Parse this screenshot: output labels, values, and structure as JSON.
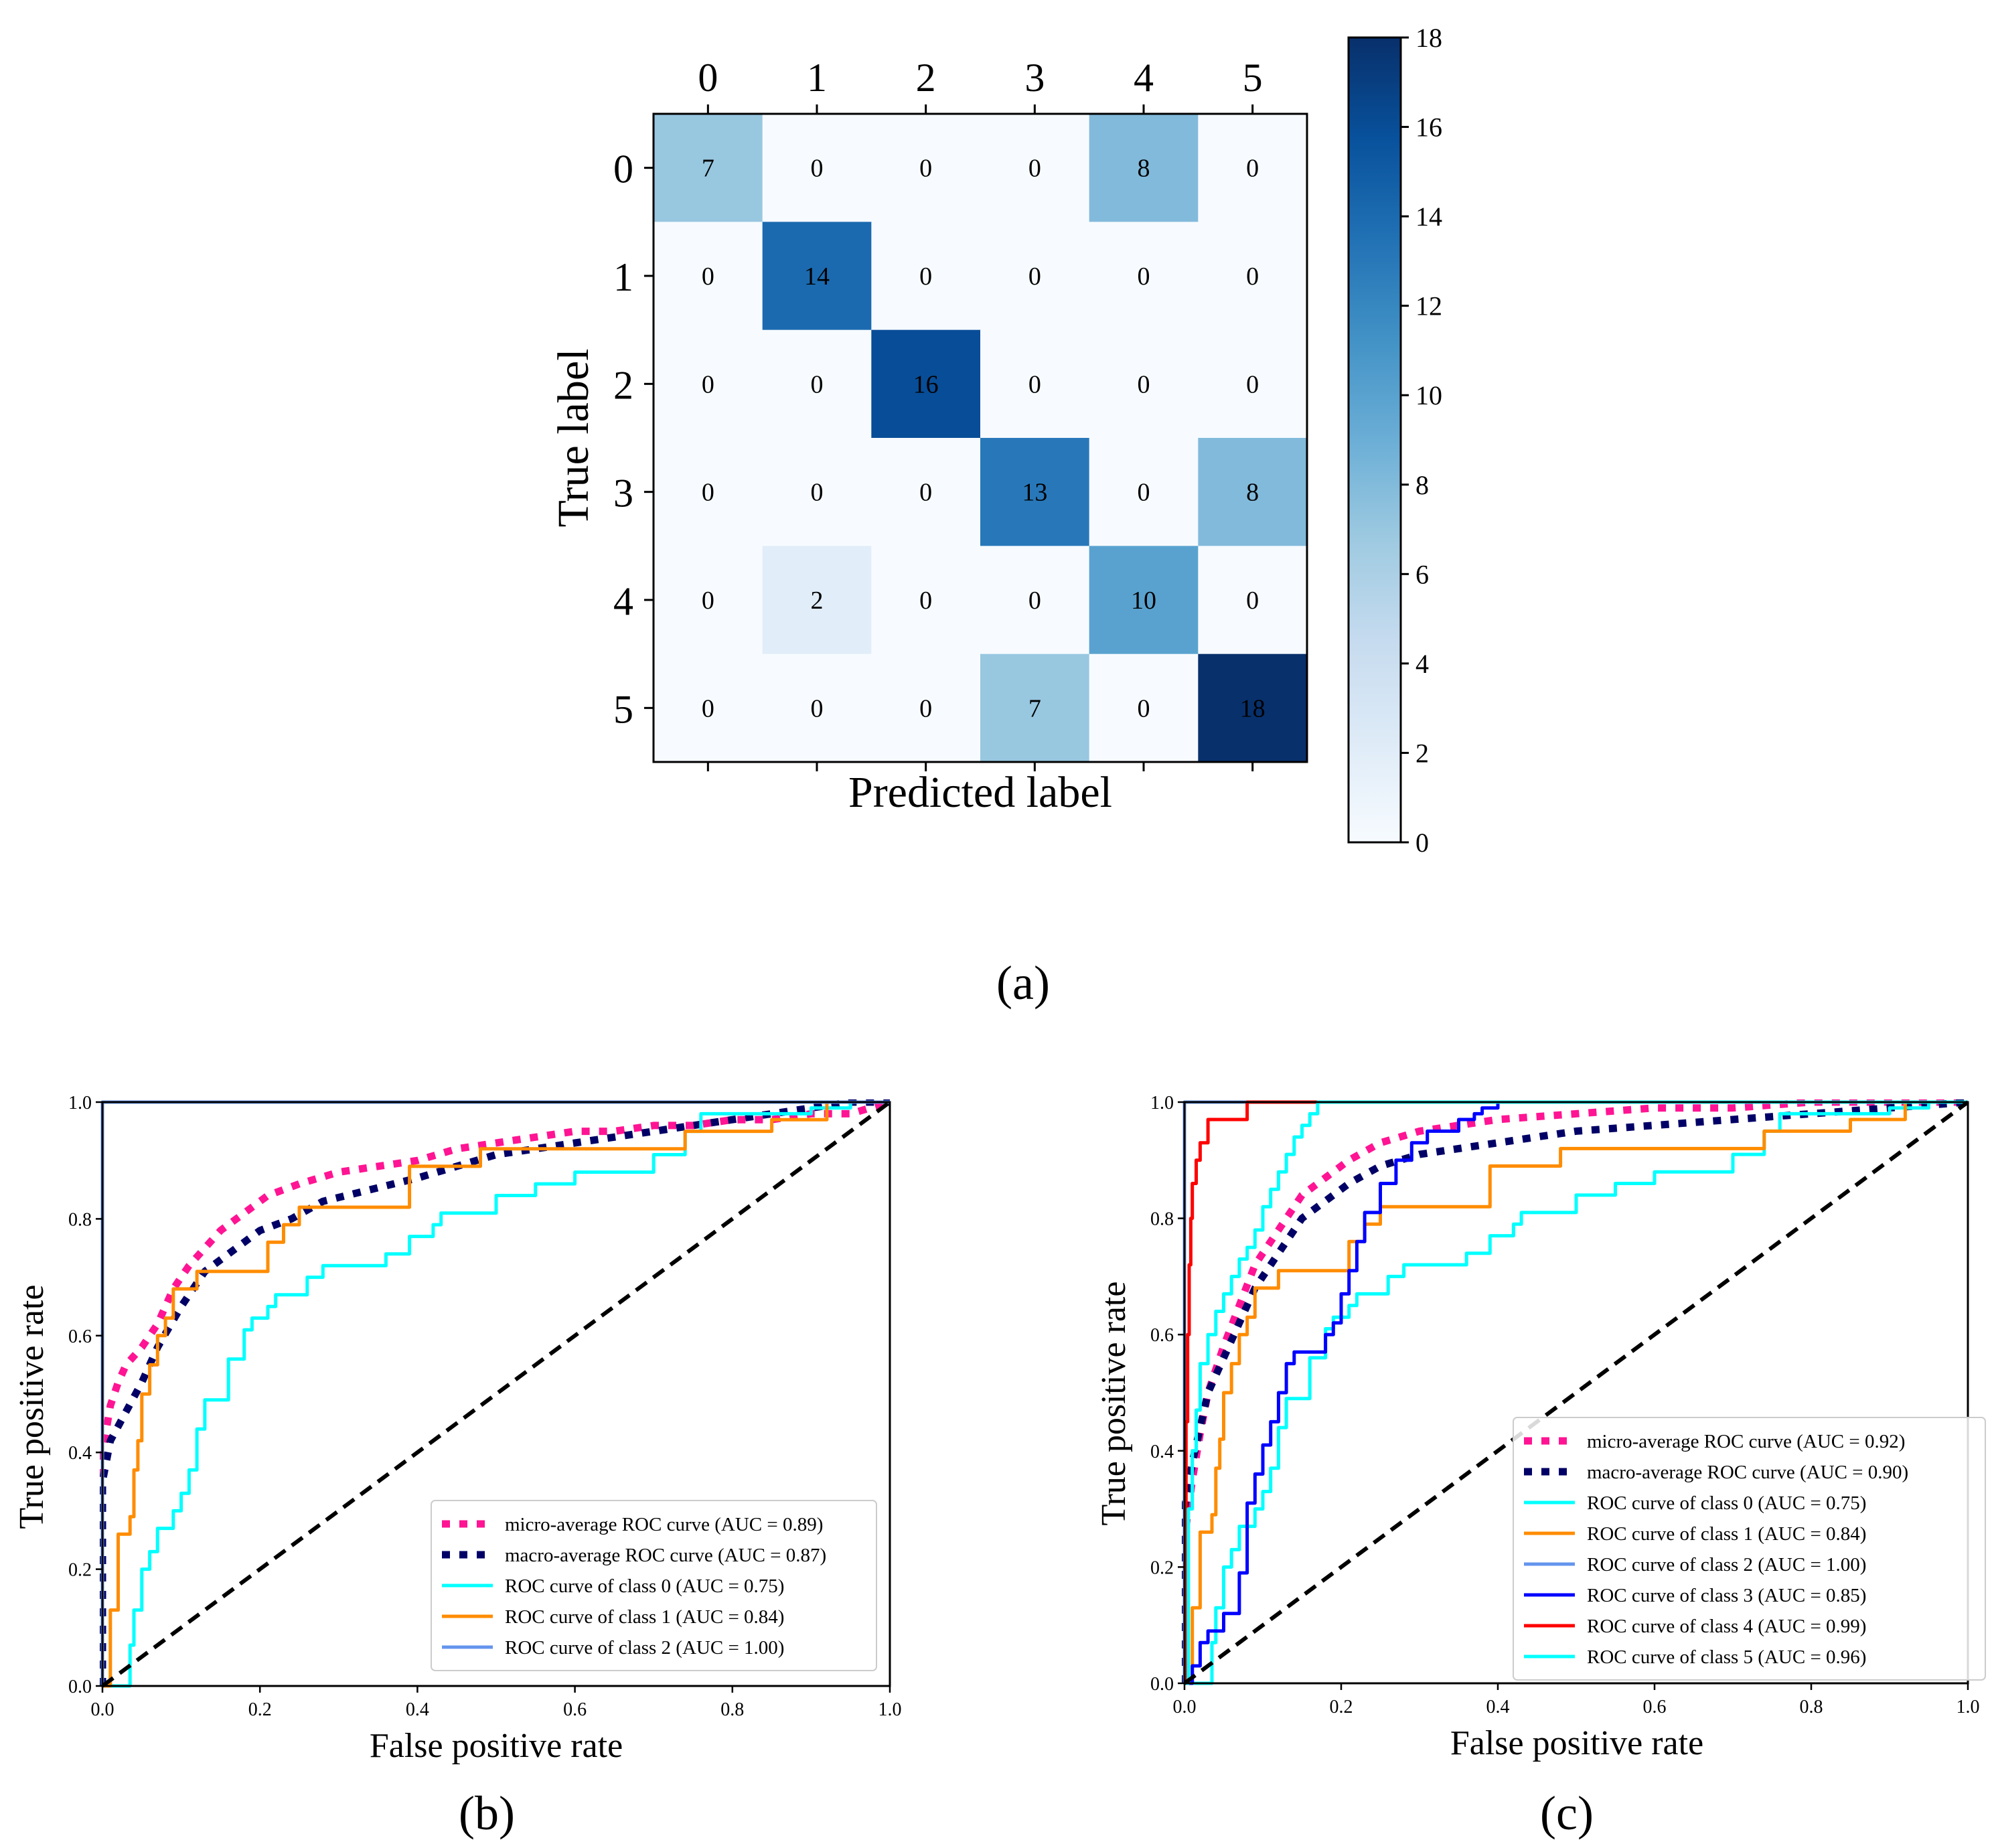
{
  "chart_data": [
    {
      "type": "heatmap",
      "panel_label": "(a)",
      "xlabel": "Predicted label",
      "ylabel": "True label",
      "x_categories": [
        "0",
        "1",
        "2",
        "3",
        "4",
        "5"
      ],
      "y_categories": [
        "0",
        "1",
        "2",
        "3",
        "4",
        "5"
      ],
      "matrix": [
        [
          7,
          0,
          0,
          0,
          8,
          0
        ],
        [
          0,
          14,
          0,
          0,
          0,
          0
        ],
        [
          0,
          0,
          16,
          0,
          0,
          0
        ],
        [
          0,
          0,
          0,
          13,
          0,
          8
        ],
        [
          0,
          2,
          0,
          0,
          10,
          0
        ],
        [
          0,
          0,
          0,
          7,
          0,
          18
        ]
      ],
      "colormap": "Blues",
      "colorbar": {
        "min": 0,
        "max": 18,
        "ticks": [
          0,
          2,
          4,
          6,
          8,
          10,
          12,
          14,
          16,
          18
        ]
      }
    },
    {
      "type": "line",
      "panel_label": "(b)",
      "xlabel": "False positive rate",
      "ylabel": "True positive rate",
      "xlim": [
        0,
        1
      ],
      "ylim": [
        0,
        1
      ],
      "xticks": [
        "0.0",
        "0.2",
        "0.4",
        "0.6",
        "0.8",
        "1.0"
      ],
      "yticks": [
        "0.0",
        "0.2",
        "0.4",
        "0.6",
        "0.8",
        "1.0"
      ],
      "legend_position": "lower-right",
      "series": [
        {
          "name": "micro-average ROC curve (AUC = 0.89)",
          "color": "#ff1493",
          "style": "dotted",
          "x": [
            0,
            0,
            0.01,
            0.02,
            0.03,
            0.05,
            0.07,
            0.09,
            0.11,
            0.13,
            0.15,
            0.18,
            0.21,
            0.25,
            0.3,
            0.35,
            0.4,
            0.45,
            0.5,
            0.55,
            0.6,
            0.65,
            0.7,
            0.75,
            0.8,
            0.85,
            0.9,
            0.95,
            1.0
          ],
          "y": [
            0,
            0.4,
            0.48,
            0.52,
            0.55,
            0.58,
            0.62,
            0.68,
            0.72,
            0.75,
            0.78,
            0.81,
            0.84,
            0.86,
            0.88,
            0.89,
            0.9,
            0.92,
            0.93,
            0.94,
            0.95,
            0.95,
            0.96,
            0.96,
            0.97,
            0.97,
            0.98,
            0.98,
            1.0
          ]
        },
        {
          "name": "macro-average ROC curve (AUC = 0.87)",
          "color": "#000066",
          "style": "dotted",
          "x": [
            0,
            0,
            0.01,
            0.03,
            0.05,
            0.07,
            0.1,
            0.13,
            0.16,
            0.2,
            0.24,
            0.28,
            0.34,
            0.4,
            0.45,
            0.5,
            0.55,
            0.6,
            0.65,
            0.7,
            0.75,
            0.8,
            0.85,
            0.9,
            0.95,
            1.0
          ],
          "y": [
            0,
            0.35,
            0.42,
            0.47,
            0.52,
            0.58,
            0.65,
            0.71,
            0.74,
            0.78,
            0.8,
            0.83,
            0.85,
            0.87,
            0.89,
            0.91,
            0.92,
            0.93,
            0.94,
            0.95,
            0.96,
            0.97,
            0.98,
            0.99,
            1.0,
            1.0
          ]
        },
        {
          "name": "ROC curve of class 0 (AUC = 0.75)",
          "color": "#00ffff",
          "style": "solid",
          "step": true,
          "x": [
            0,
            0.03,
            0.035,
            0.04,
            0.05,
            0.06,
            0.07,
            0.09,
            0.1,
            0.11,
            0.12,
            0.13,
            0.15,
            0.16,
            0.18,
            0.19,
            0.21,
            0.22,
            0.24,
            0.26,
            0.28,
            0.3,
            0.33,
            0.36,
            0.39,
            0.42,
            0.43,
            0.46,
            0.5,
            0.55,
            0.6,
            0.65,
            0.7,
            0.74,
            0.76,
            0.8,
            0.85,
            0.9,
            0.95,
            1.0
          ],
          "y": [
            0,
            0,
            0.07,
            0.13,
            0.2,
            0.23,
            0.27,
            0.3,
            0.33,
            0.37,
            0.44,
            0.49,
            0.49,
            0.56,
            0.61,
            0.63,
            0.65,
            0.67,
            0.67,
            0.7,
            0.72,
            0.72,
            0.72,
            0.74,
            0.77,
            0.79,
            0.81,
            0.81,
            0.84,
            0.86,
            0.88,
            0.88,
            0.91,
            0.95,
            0.98,
            0.98,
            0.98,
            0.99,
            1.0,
            1.0
          ]
        },
        {
          "name": "ROC curve of class 1 (AUC = 0.84)",
          "color": "#ff8c00",
          "style": "solid",
          "step": true,
          "x": [
            0,
            0.01,
            0.02,
            0.035,
            0.04,
            0.045,
            0.05,
            0.06,
            0.07,
            0.08,
            0.09,
            0.1,
            0.11,
            0.12,
            0.13,
            0.15,
            0.17,
            0.19,
            0.21,
            0.23,
            0.25,
            0.27,
            0.3,
            0.35,
            0.39,
            0.43,
            0.48,
            0.55,
            0.65,
            0.74,
            0.8,
            0.85,
            0.9,
            0.92,
            1.0
          ],
          "y": [
            0,
            0.13,
            0.26,
            0.29,
            0.37,
            0.42,
            0.5,
            0.55,
            0.6,
            0.63,
            0.68,
            0.68,
            0.68,
            0.71,
            0.71,
            0.71,
            0.71,
            0.71,
            0.76,
            0.79,
            0.82,
            0.82,
            0.82,
            0.82,
            0.89,
            0.89,
            0.92,
            0.92,
            0.92,
            0.95,
            0.95,
            0.97,
            0.97,
            1.0,
            1.0
          ]
        },
        {
          "name": "ROC curve of class 2 (AUC = 1.00)",
          "color": "#6495ed",
          "style": "solid",
          "x": [
            0,
            0,
            1
          ],
          "y": [
            0,
            1,
            1
          ]
        },
        {
          "name": "",
          "color": "#000000",
          "style": "dashed",
          "x": [
            0,
            1
          ],
          "y": [
            0,
            1
          ]
        }
      ]
    },
    {
      "type": "line",
      "panel_label": "(c)",
      "xlabel": "False positive rate",
      "ylabel": "True positive rate",
      "xlim": [
        0,
        1
      ],
      "ylim": [
        0,
        1
      ],
      "xticks": [
        "0.0",
        "0.2",
        "0.4",
        "0.6",
        "0.8",
        "1.0"
      ],
      "yticks": [
        "0.0",
        "0.2",
        "0.4",
        "0.6",
        "0.8",
        "1.0"
      ],
      "legend_position": "lower-right",
      "series": [
        {
          "name": "micro-average ROC curve (AUC = 0.92)",
          "color": "#ff1493",
          "style": "dotted",
          "x": [
            0,
            0,
            0.01,
            0.02,
            0.03,
            0.05,
            0.07,
            0.09,
            0.11,
            0.13,
            0.15,
            0.18,
            0.21,
            0.25,
            0.3,
            0.35,
            0.4,
            0.5,
            0.6,
            0.7,
            0.8,
            0.9,
            1.0
          ],
          "y": [
            0,
            0.25,
            0.35,
            0.43,
            0.5,
            0.58,
            0.65,
            0.72,
            0.76,
            0.8,
            0.84,
            0.87,
            0.9,
            0.93,
            0.95,
            0.96,
            0.97,
            0.98,
            0.99,
            0.99,
            1.0,
            1.0,
            1.0
          ]
        },
        {
          "name": "macro-average ROC curve (AUC = 0.90)",
          "color": "#000066",
          "style": "dotted",
          "x": [
            0,
            0,
            0.01,
            0.02,
            0.03,
            0.05,
            0.07,
            0.09,
            0.11,
            0.13,
            0.15,
            0.18,
            0.21,
            0.25,
            0.3,
            0.35,
            0.4,
            0.5,
            0.6,
            0.7,
            0.8,
            0.9,
            1.0
          ],
          "y": [
            0,
            0.3,
            0.38,
            0.44,
            0.5,
            0.56,
            0.62,
            0.68,
            0.72,
            0.76,
            0.8,
            0.83,
            0.86,
            0.89,
            0.91,
            0.92,
            0.93,
            0.95,
            0.96,
            0.97,
            0.98,
            0.99,
            1.0
          ]
        },
        {
          "name": "ROC curve of class 0 (AUC = 0.75)",
          "color": "#00ffff",
          "style": "solid",
          "step": true,
          "x": [
            0,
            0.03,
            0.035,
            0.04,
            0.05,
            0.06,
            0.07,
            0.09,
            0.1,
            0.11,
            0.12,
            0.13,
            0.15,
            0.16,
            0.18,
            0.19,
            0.21,
            0.22,
            0.24,
            0.26,
            0.28,
            0.3,
            0.33,
            0.36,
            0.39,
            0.42,
            0.43,
            0.46,
            0.5,
            0.55,
            0.6,
            0.65,
            0.7,
            0.74,
            0.76,
            0.8,
            0.85,
            0.9,
            0.95,
            1.0
          ],
          "y": [
            0,
            0,
            0.07,
            0.13,
            0.2,
            0.23,
            0.27,
            0.3,
            0.33,
            0.37,
            0.44,
            0.49,
            0.49,
            0.56,
            0.61,
            0.63,
            0.65,
            0.67,
            0.67,
            0.7,
            0.72,
            0.72,
            0.72,
            0.74,
            0.77,
            0.79,
            0.81,
            0.81,
            0.84,
            0.86,
            0.88,
            0.88,
            0.91,
            0.95,
            0.98,
            0.98,
            0.98,
            0.99,
            1.0,
            1.0
          ]
        },
        {
          "name": "ROC curve of class 1 (AUC = 0.84)",
          "color": "#ff8c00",
          "style": "solid",
          "step": true,
          "x": [
            0,
            0.01,
            0.02,
            0.035,
            0.04,
            0.045,
            0.05,
            0.06,
            0.07,
            0.08,
            0.09,
            0.1,
            0.11,
            0.12,
            0.13,
            0.15,
            0.17,
            0.19,
            0.21,
            0.23,
            0.25,
            0.27,
            0.3,
            0.35,
            0.39,
            0.43,
            0.48,
            0.55,
            0.65,
            0.74,
            0.8,
            0.85,
            0.9,
            0.92,
            1.0
          ],
          "y": [
            0,
            0.13,
            0.26,
            0.29,
            0.37,
            0.42,
            0.5,
            0.55,
            0.6,
            0.63,
            0.68,
            0.68,
            0.68,
            0.71,
            0.71,
            0.71,
            0.71,
            0.71,
            0.76,
            0.79,
            0.82,
            0.82,
            0.82,
            0.82,
            0.89,
            0.89,
            0.92,
            0.92,
            0.92,
            0.95,
            0.95,
            0.97,
            0.97,
            1.0,
            1.0
          ]
        },
        {
          "name": "ROC curve of class 2 (AUC = 1.00)",
          "color": "#6495ed",
          "style": "solid",
          "x": [
            0,
            0,
            1
          ],
          "y": [
            0,
            1,
            1
          ]
        },
        {
          "name": "ROC curve of class 3 (AUC = 0.85)",
          "color": "#0000ff",
          "style": "solid",
          "step": true,
          "x": [
            0,
            0.01,
            0.02,
            0.03,
            0.05,
            0.07,
            0.08,
            0.09,
            0.1,
            0.11,
            0.12,
            0.13,
            0.14,
            0.16,
            0.18,
            0.19,
            0.2,
            0.21,
            0.22,
            0.23,
            0.25,
            0.27,
            0.29,
            0.31,
            0.33,
            0.35,
            0.37,
            0.38,
            0.4,
            0.5,
            0.6,
            0.7,
            0.8,
            0.9,
            1.0
          ],
          "y": [
            0,
            0.03,
            0.07,
            0.09,
            0.12,
            0.19,
            0.31,
            0.36,
            0.41,
            0.45,
            0.5,
            0.55,
            0.57,
            0.57,
            0.6,
            0.62,
            0.67,
            0.71,
            0.76,
            0.81,
            0.86,
            0.9,
            0.93,
            0.95,
            0.95,
            0.97,
            0.98,
            0.99,
            1.0,
            1.0,
            1.0,
            1.0,
            1.0,
            1.0,
            1.0
          ]
        },
        {
          "name": "ROC curve of class 4 (AUC = 0.99)",
          "color": "#ff0000",
          "style": "solid",
          "step": true,
          "x": [
            0,
            0.002,
            0.004,
            0.006,
            0.008,
            0.01,
            0.015,
            0.02,
            0.03,
            0.05,
            0.06,
            0.08,
            0.1,
            0.12,
            0.14,
            0.16,
            0.2,
            0.5,
            1.0
          ],
          "y": [
            0,
            0.45,
            0.6,
            0.72,
            0.8,
            0.86,
            0.9,
            0.93,
            0.97,
            0.97,
            0.97,
            1.0,
            1.0,
            1.0,
            1.0,
            1.0,
            1.0,
            1.0,
            1.0
          ]
        },
        {
          "name": "ROC curve of class 5 (AUC = 0.96)",
          "color": "#00ffff",
          "style": "solid",
          "step": true,
          "x": [
            0,
            0.005,
            0.01,
            0.015,
            0.02,
            0.03,
            0.04,
            0.05,
            0.06,
            0.07,
            0.08,
            0.09,
            0.1,
            0.11,
            0.12,
            0.13,
            0.14,
            0.15,
            0.16,
            0.17,
            0.2,
            0.4,
            0.6,
            0.8,
            1.0
          ],
          "y": [
            0,
            0.3,
            0.4,
            0.47,
            0.55,
            0.6,
            0.64,
            0.67,
            0.7,
            0.73,
            0.75,
            0.78,
            0.82,
            0.85,
            0.88,
            0.91,
            0.94,
            0.96,
            0.98,
            1.0,
            1.0,
            1.0,
            1.0,
            1.0,
            1.0
          ]
        },
        {
          "name": "",
          "color": "#000000",
          "style": "dashed",
          "x": [
            0,
            1
          ],
          "y": [
            0,
            1
          ]
        }
      ]
    }
  ]
}
